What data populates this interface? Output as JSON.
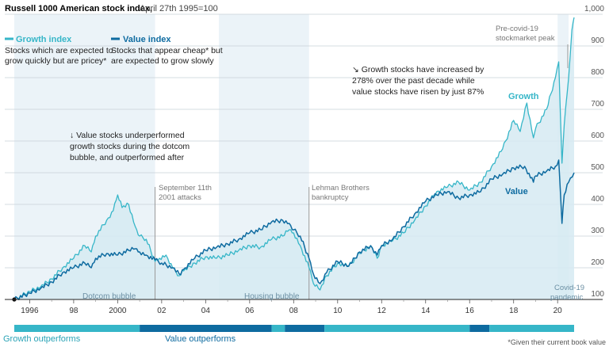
{
  "header": {
    "title": "Russell 1000 American stock index,",
    "subtitle": "April 27th 1995=100"
  },
  "footnote": "*Given their current book value",
  "colors": {
    "growth": "#36b6c8",
    "value": "#0e6ba0",
    "fill": "#d6eaf2",
    "grid": "#c9d2d8",
    "band_growth": "#36b6c8",
    "band_value": "#0e6ba0"
  },
  "legend": [
    {
      "name": "Growth index",
      "desc": [
        "Stocks which are expected to",
        "grow quickly but are pricey*"
      ]
    },
    {
      "name": "Value index",
      "desc": [
        "Stocks that appear cheap* but",
        "are expected to grow slowly"
      ]
    }
  ],
  "annotations": {
    "dotcom_note": [
      "↓ Value stocks underperformed",
      "growth stocks during the dotcom",
      "bubble, and outperformed after"
    ],
    "decade_note": [
      "↘ Growth stocks have increased by",
      "278% over the past decade while",
      "value stocks have risen by just 87%"
    ],
    "sept11": [
      "September 11th",
      "2001 attacks"
    ],
    "lehman": [
      "Lehman Brothers",
      "bankruptcy"
    ],
    "precovid": [
      "Pre-covid-19",
      "stockmarket peak"
    ],
    "dotcom_bubble": "Dotcom bubble",
    "housing_bubble": "Housing bubble",
    "covid": [
      "Covid-19",
      "pandemic"
    ],
    "growth_label": "Growth",
    "value_label": "Value"
  },
  "bands": {
    "growth_label": "Growth outperforms",
    "value_label": "Value outperforms"
  },
  "chart_data": {
    "type": "line",
    "title": "Russell 1000 American stock index, April 27th 1995=100",
    "xlim": [
      1995.3,
      2020.75
    ],
    "ylim": [
      100,
      1000
    ],
    "y_ticks": [
      100,
      200,
      300,
      400,
      500,
      600,
      700,
      800,
      900,
      "1,000"
    ],
    "x_ticks": [
      {
        "label": "1996",
        "x": 1996
      },
      {
        "label": "98",
        "x": 1998
      },
      {
        "label": "2000",
        "x": 2000
      },
      {
        "label": "02",
        "x": 2002
      },
      {
        "label": "04",
        "x": 2004
      },
      {
        "label": "06",
        "x": 2006
      },
      {
        "label": "08",
        "x": 2008
      },
      {
        "label": "10",
        "x": 2010
      },
      {
        "label": "12",
        "x": 2012
      },
      {
        "label": "14",
        "x": 2014
      },
      {
        "label": "16",
        "x": 2016
      },
      {
        "label": "18",
        "x": 2018
      },
      {
        "label": "20",
        "x": 2020
      }
    ],
    "shaded_periods": [
      {
        "label": "Dotcom bubble",
        "start": 1995.3,
        "end": 2001.7
      },
      {
        "label": "Housing bubble",
        "start": 2004.6,
        "end": 2008.7
      },
      {
        "label": "Covid-19 pandemic",
        "start": 2020.0,
        "end": 2020.5
      }
    ],
    "event_lines": [
      {
        "label": "September 11th 2001 attacks",
        "x": 2001.7
      },
      {
        "label": "Lehman Brothers bankruptcy",
        "x": 2008.7
      }
    ],
    "series": [
      {
        "name": "Growth index",
        "x": [
          1995.3,
          1996.0,
          1996.5,
          1997.0,
          1997.5,
          1998.0,
          1998.5,
          1998.8,
          1999.0,
          1999.5,
          1999.8,
          2000.0,
          2000.2,
          2000.5,
          2000.8,
          2001.0,
          2001.3,
          2001.7,
          2001.9,
          2002.2,
          2002.5,
          2002.8,
          2003.0,
          2003.5,
          2004.0,
          2004.5,
          2005.0,
          2005.5,
          2006.0,
          2006.5,
          2007.0,
          2007.5,
          2007.8,
          2008.0,
          2008.3,
          2008.7,
          2008.9,
          2009.2,
          2009.5,
          2010.0,
          2010.5,
          2011.0,
          2011.5,
          2011.8,
          2012.0,
          2012.5,
          2013.0,
          2013.5,
          2014.0,
          2014.5,
          2015.0,
          2015.5,
          2016.0,
          2016.5,
          2017.0,
          2017.5,
          2018.0,
          2018.3,
          2018.6,
          2018.9,
          2019.0,
          2019.5,
          2019.9,
          2020.05,
          2020.2,
          2020.3,
          2020.5,
          2020.65,
          2020.75
        ],
        "values": [
          100,
          125,
          140,
          165,
          200,
          230,
          270,
          250,
          300,
          350,
          380,
          430,
          390,
          400,
          330,
          300,
          290,
          220,
          230,
          240,
          200,
          175,
          190,
          215,
          235,
          230,
          240,
          255,
          270,
          265,
          290,
          300,
          320,
          310,
          270,
          200,
          150,
          130,
          175,
          215,
          205,
          245,
          270,
          230,
          270,
          285,
          310,
          350,
          395,
          440,
          455,
          470,
          445,
          470,
          520,
          575,
          665,
          630,
          720,
          610,
          640,
          700,
          800,
          850,
          530,
          650,
          800,
          950,
          990
        ],
        "color": "#36b6c8"
      },
      {
        "name": "Value index",
        "x": [
          1995.3,
          1996.0,
          1996.5,
          1997.0,
          1997.5,
          1998.0,
          1998.5,
          1998.8,
          1999.0,
          1999.5,
          2000.0,
          2000.5,
          2000.8,
          2001.0,
          2001.3,
          2001.7,
          2002.0,
          2002.5,
          2002.8,
          2003.0,
          2003.5,
          2004.0,
          2004.5,
          2005.0,
          2005.5,
          2006.0,
          2006.5,
          2007.0,
          2007.5,
          2007.8,
          2008.0,
          2008.3,
          2008.7,
          2008.9,
          2009.2,
          2009.5,
          2010.0,
          2010.5,
          2011.0,
          2011.5,
          2011.8,
          2012.0,
          2012.5,
          2013.0,
          2013.5,
          2014.0,
          2014.5,
          2015.0,
          2015.5,
          2016.0,
          2016.5,
          2017.0,
          2017.5,
          2018.0,
          2018.5,
          2018.9,
          2019.0,
          2019.5,
          2019.9,
          2020.05,
          2020.2,
          2020.3,
          2020.5,
          2020.75
        ],
        "values": [
          100,
          120,
          135,
          155,
          185,
          200,
          215,
          200,
          230,
          245,
          240,
          255,
          260,
          250,
          240,
          225,
          215,
          200,
          180,
          195,
          230,
          255,
          265,
          275,
          290,
          310,
          320,
          345,
          350,
          340,
          320,
          300,
          230,
          180,
          150,
          185,
          220,
          205,
          250,
          270,
          240,
          270,
          290,
          330,
          370,
          410,
          430,
          440,
          420,
          430,
          440,
          480,
          495,
          515,
          520,
          470,
          490,
          505,
          520,
          540,
          340,
          430,
          470,
          500
        ],
        "color": "#0e6ba0"
      }
    ],
    "outperform_bands": [
      {
        "winner": "growth",
        "start": 1995.3,
        "end": 2001.0
      },
      {
        "winner": "value",
        "start": 2001.0,
        "end": 2007.0
      },
      {
        "winner": "growth",
        "start": 2007.0,
        "end": 2007.6
      },
      {
        "winner": "value",
        "start": 2007.6,
        "end": 2009.4
      },
      {
        "winner": "growth",
        "start": 2009.4,
        "end": 2016.0
      },
      {
        "winner": "value",
        "start": 2016.0,
        "end": 2016.9
      },
      {
        "winner": "growth",
        "start": 2016.9,
        "end": 2020.75
      }
    ]
  }
}
